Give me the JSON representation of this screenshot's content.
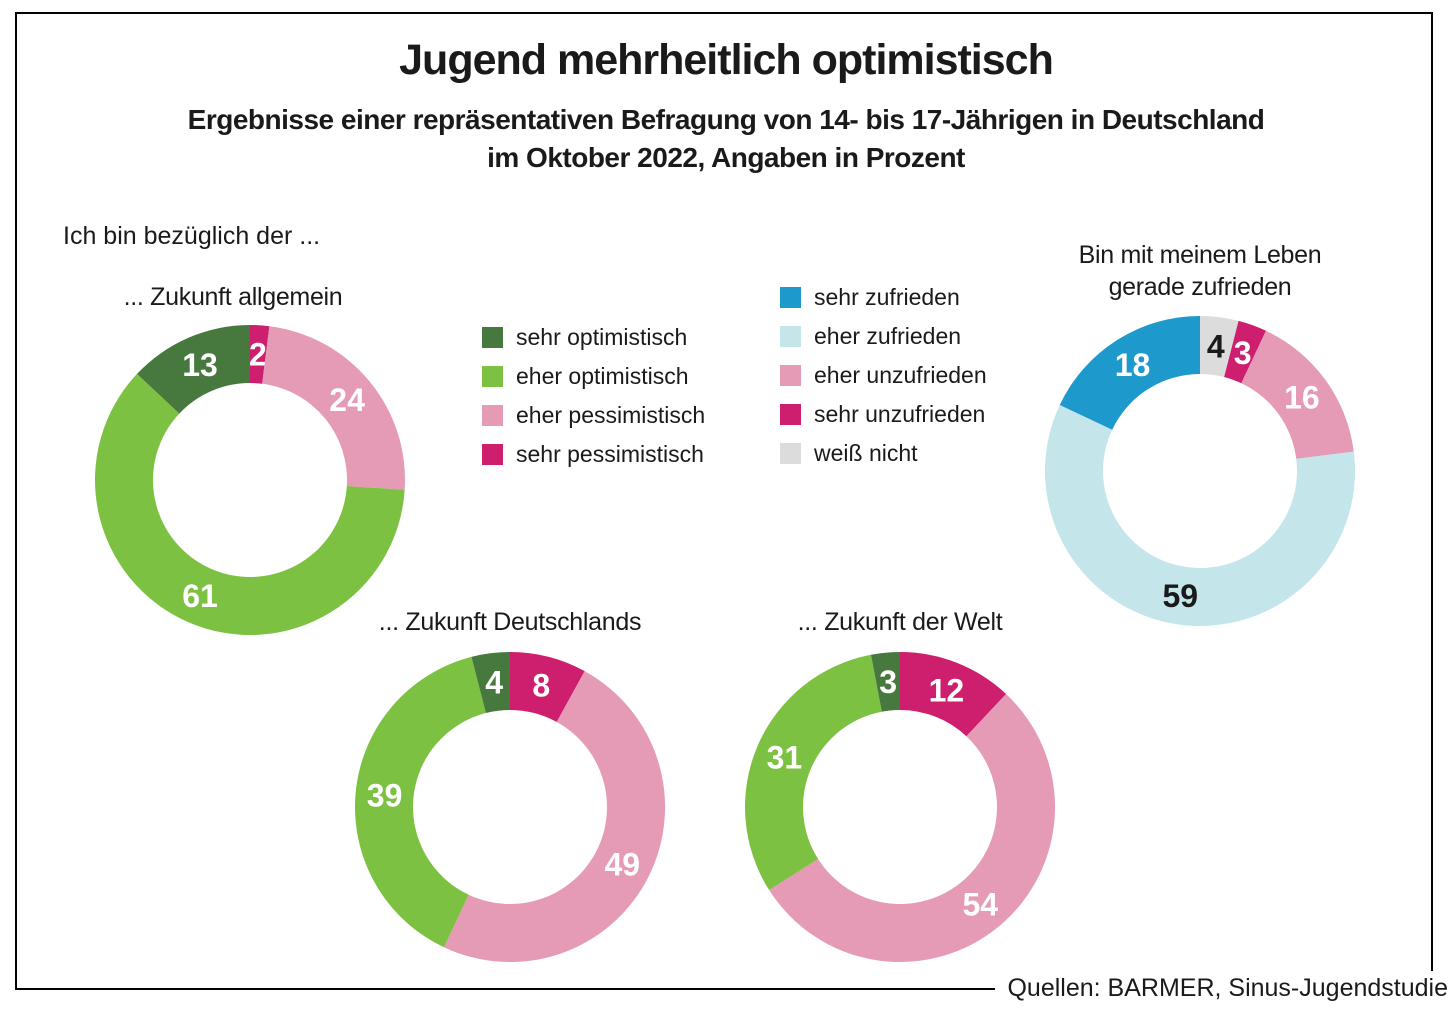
{
  "header": {
    "title": "Jugend mehrheitlich optimistisch",
    "subtitle_line1": "Ergebnisse einer repräsentativen Befragung von 14- bis 17-Jährigen in Deutschland",
    "subtitle_line2": "im Oktober 2022, Angaben in Prozent"
  },
  "intro_label": "Ich bin bezüglich der ...",
  "source": "Quellen: BARMER, Sinus-Jugendstudie",
  "colors": {
    "sehr_optimistisch": "#47793e",
    "eher_optimistisch": "#7dc142",
    "eher_pessimistisch": "#e59bb5",
    "sehr_pessimistisch": "#ce1f6e",
    "sehr_zufrieden": "#1e99cc",
    "eher_zufrieden": "#c4e5ea",
    "eher_unzufrieden": "#e59bb5",
    "sehr_unzufrieden": "#ce1f6e",
    "weiss_nicht": "#dcdcdd",
    "text": "#1a1a1a"
  },
  "legends": [
    {
      "name": "optimism",
      "items": [
        {
          "label": "sehr optimistisch",
          "color": "#47793e"
        },
        {
          "label": "eher optimistisch",
          "color": "#7dc142"
        },
        {
          "label": "eher pessimistisch",
          "color": "#e59bb5"
        },
        {
          "label": "sehr pessimistisch",
          "color": "#ce1f6e"
        }
      ]
    },
    {
      "name": "satisfaction",
      "items": [
        {
          "label": "sehr zufrieden",
          "color": "#1e99cc"
        },
        {
          "label": "eher zufrieden",
          "color": "#c4e5ea"
        },
        {
          "label": "eher unzufrieden",
          "color": "#e59bb5"
        },
        {
          "label": "sehr unzufrieden",
          "color": "#ce1f6e"
        },
        {
          "label": "weiß nicht",
          "color": "#dcdcdd"
        }
      ]
    }
  ],
  "chart_data": [
    {
      "type": "donut",
      "title": "... Zukunft allgemein",
      "unit": "percent",
      "direction": "clockwise_from_top",
      "segments": [
        {
          "label": "sehr pessimistisch",
          "value": 2,
          "color": "#ce1f6e",
          "label_color": "#ffffff"
        },
        {
          "label": "eher pessimistisch",
          "value": 24,
          "color": "#e59bb5",
          "label_color": "#ffffff"
        },
        {
          "label": "eher optimistisch",
          "value": 61,
          "color": "#7dc142",
          "label_color": "#ffffff"
        },
        {
          "label": "sehr optimistisch",
          "value": 13,
          "color": "#47793e",
          "label_color": "#ffffff"
        }
      ]
    },
    {
      "type": "donut",
      "title": "... Zukunft Deutschlands",
      "unit": "percent",
      "direction": "clockwise_from_top",
      "segments": [
        {
          "label": "sehr pessimistisch",
          "value": 8,
          "color": "#ce1f6e",
          "label_color": "#ffffff"
        },
        {
          "label": "eher pessimistisch",
          "value": 49,
          "color": "#e59bb5",
          "label_color": "#ffffff"
        },
        {
          "label": "eher optimistisch",
          "value": 39,
          "color": "#7dc142",
          "label_color": "#ffffff"
        },
        {
          "label": "sehr optimistisch",
          "value": 4,
          "color": "#47793e",
          "label_color": "#ffffff"
        }
      ]
    },
    {
      "type": "donut",
      "title": "... Zukunft der Welt",
      "unit": "percent",
      "direction": "clockwise_from_top",
      "segments": [
        {
          "label": "sehr pessimistisch",
          "value": 12,
          "color": "#ce1f6e",
          "label_color": "#ffffff"
        },
        {
          "label": "eher pessimistisch",
          "value": 54,
          "color": "#e59bb5",
          "label_color": "#ffffff"
        },
        {
          "label": "eher optimistisch",
          "value": 31,
          "color": "#7dc142",
          "label_color": "#ffffff"
        },
        {
          "label": "sehr optimistisch",
          "value": 3,
          "color": "#47793e",
          "label_color": "#ffffff"
        }
      ]
    },
    {
      "type": "donut",
      "title": "Bin mit meinem Leben gerade zufrieden",
      "unit": "percent",
      "direction": "clockwise_from_top",
      "segments": [
        {
          "label": "weiß nicht",
          "value": 4,
          "color": "#dcdcdd",
          "label_color": "#1a1a1a"
        },
        {
          "label": "sehr unzufrieden",
          "value": 3,
          "color": "#ce1f6e",
          "label_color": "#ffffff"
        },
        {
          "label": "eher unzufrieden",
          "value": 16,
          "color": "#e59bb5",
          "label_color": "#ffffff"
        },
        {
          "label": "eher zufrieden",
          "value": 59,
          "color": "#c4e5ea",
          "label_color": "#1a1a1a"
        },
        {
          "label": "sehr zufrieden",
          "value": 18,
          "color": "#1e99cc",
          "label_color": "#ffffff"
        }
      ]
    }
  ]
}
